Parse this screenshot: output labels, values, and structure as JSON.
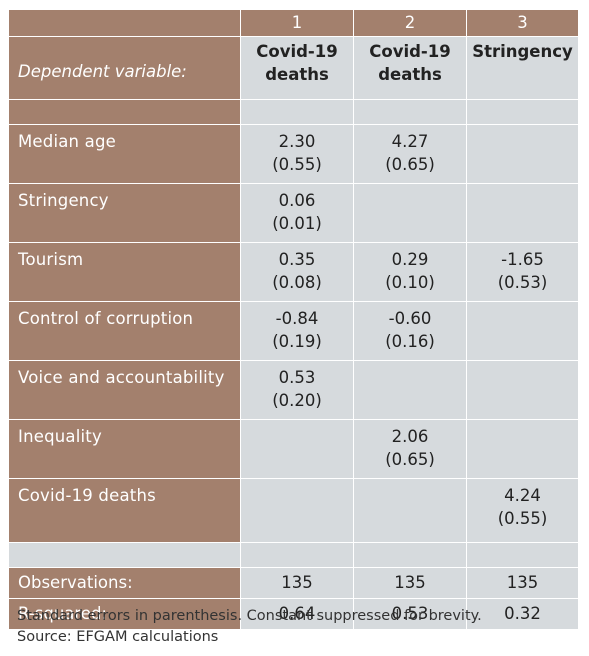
{
  "columns": [
    {
      "number": "1",
      "dependent": [
        "Covid-19",
        "deaths"
      ]
    },
    {
      "number": "2",
      "dependent": [
        "Covid-19",
        "deaths"
      ]
    },
    {
      "number": "3",
      "dependent": [
        "Stringency",
        ""
      ]
    }
  ],
  "dependent_label": "Dependent variable:",
  "rows": [
    {
      "label": "Median age",
      "cells": [
        [
          "2.30",
          "(0.55)"
        ],
        [
          "4.27",
          "(0.65)"
        ],
        [
          "",
          ""
        ]
      ]
    },
    {
      "label": "Stringency",
      "cells": [
        [
          "0.06",
          "(0.01)"
        ],
        [
          "",
          ""
        ],
        [
          "",
          ""
        ]
      ]
    },
    {
      "label": "Tourism",
      "cells": [
        [
          "0.35",
          "(0.08)"
        ],
        [
          "0.29",
          "(0.10)"
        ],
        [
          "-1.65",
          "(0.53)"
        ]
      ]
    },
    {
      "label": "Control of corruption",
      "cells": [
        [
          "-0.84",
          "(0.19)"
        ],
        [
          "-0.60",
          "(0.16)"
        ],
        [
          "",
          ""
        ]
      ]
    },
    {
      "label": "Voice and accountability",
      "cells": [
        [
          "0.53",
          "(0.20)"
        ],
        [
          "",
          ""
        ],
        [
          "",
          ""
        ]
      ]
    },
    {
      "label": "Inequality",
      "cells": [
        [
          "",
          ""
        ],
        [
          "2.06",
          "(0.65)"
        ],
        [
          "",
          ""
        ]
      ]
    },
    {
      "label": "Covid-19 deaths",
      "cells": [
        [
          "",
          ""
        ],
        [
          "",
          ""
        ],
        [
          "4.24",
          "(0.55)"
        ]
      ]
    }
  ],
  "stats": [
    {
      "label": "Observations:",
      "values": [
        "135",
        "135",
        "135"
      ]
    },
    {
      "label": "R-squared:",
      "values": [
        "0.64",
        "0.53",
        "0.32"
      ]
    }
  ],
  "footnote": {
    "line1": "Standard errors in parenthesis. Constant suppressed for brevity.",
    "line2": "Source: EFGAM calculations"
  },
  "colors": {
    "label_bg": "#a3806d",
    "cell_bg": "#d6dadd"
  }
}
